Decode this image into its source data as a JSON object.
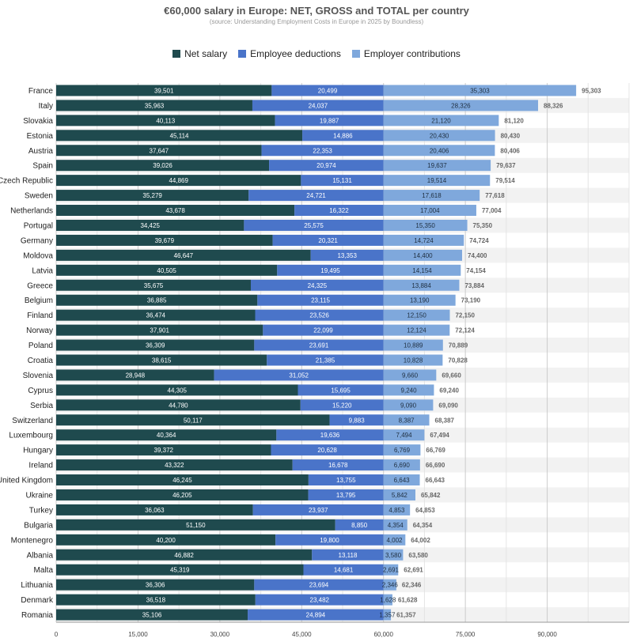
{
  "chart_data": {
    "type": "bar",
    "orientation": "horizontal",
    "stacked": true,
    "title": "€60,000 salary in Europe: NET, GROSS and TOTAL per country",
    "subtitle": "(source: Understanding Employment Costs in Europe in 2025 by Boundless)",
    "legend_position": "top",
    "grid": true,
    "xlim": [
      0,
      105000
    ],
    "x_ticks": [
      0,
      15000,
      30000,
      45000,
      60000,
      75000,
      90000
    ],
    "x_tick_labels": [
      "0",
      "15,000",
      "30,000",
      "45,000",
      "60,000",
      "75,000",
      "90,000"
    ],
    "categories": [
      "France",
      "Italy",
      "Slovakia",
      "Estonia",
      "Austria",
      "Spain",
      "Czech Republic",
      "Sweden",
      "Netherlands",
      "Portugal",
      "Germany",
      "Moldova",
      "Latvia",
      "Greece",
      "Belgium",
      "Finland",
      "Norway",
      "Poland",
      "Croatia",
      "Slovenia",
      "Cyprus",
      "Serbia",
      "Switzerland",
      "Luxembourg",
      "Hungary",
      "Ireland",
      "United Kingdom",
      "Ukraine",
      "Turkey",
      "Bulgaria",
      "Montenegro",
      "Albania",
      "Malta",
      "Lithuania",
      "Denmark",
      "Romania"
    ],
    "series": [
      {
        "name": "Net salary",
        "color": "#1f4a4e",
        "values": [
          39501,
          35963,
          40113,
          45114,
          37647,
          39026,
          44869,
          35279,
          43678,
          34425,
          39679,
          46647,
          40505,
          35675,
          36885,
          36474,
          37901,
          36309,
          38615,
          28948,
          44305,
          44780,
          50117,
          40364,
          39372,
          43322,
          46245,
          46205,
          36063,
          51150,
          40200,
          46882,
          45319,
          36306,
          36518,
          35106
        ],
        "labels": [
          "39,501",
          "35,963",
          "40,113",
          "45,114",
          "37,647",
          "39,026",
          "44,869",
          "35,279",
          "43,678",
          "34,425",
          "39,679",
          "46,647",
          "40,505",
          "35,675",
          "36,885",
          "36,474",
          "37,901",
          "36,309",
          "38,615",
          "28,948",
          "44,305",
          "44,780",
          "50,117",
          "40,364",
          "39,372",
          "43,322",
          "46,245",
          "46,205",
          "36,063",
          "51,150",
          "40,200",
          "46,882",
          "45,319",
          "36,306",
          "36,518",
          "35,106"
        ]
      },
      {
        "name": "Employee deductions",
        "color": "#4a74c9",
        "values": [
          20499,
          24037,
          19887,
          14886,
          22353,
          20974,
          15131,
          24721,
          16322,
          25575,
          20321,
          13353,
          19495,
          24325,
          23115,
          23526,
          22099,
          23691,
          21385,
          31052,
          15695,
          15220,
          9883,
          19636,
          20628,
          16678,
          13755,
          13795,
          23937,
          8850,
          19800,
          13118,
          14681,
          23694,
          23482,
          24894
        ],
        "labels": [
          "20,499",
          "24,037",
          "19,887",
          "14,886",
          "22,353",
          "20,974",
          "15,131",
          "24,721",
          "16,322",
          "25,575",
          "20,321",
          "13,353",
          "19,495",
          "24,325",
          "23,115",
          "23,526",
          "22,099",
          "23,691",
          "21,385",
          "31,052",
          "15,695",
          "15,220",
          "9,883",
          "19,636",
          "20,628",
          "16,678",
          "13,755",
          "13,795",
          "23,937",
          "8,850",
          "19,800",
          "13,118",
          "14,681",
          "23,694",
          "23,482",
          "24,894"
        ]
      },
      {
        "name": "Employer contributions",
        "color": "#7fa8dc",
        "values": [
          35303,
          28326,
          21120,
          20430,
          20406,
          19637,
          19514,
          17618,
          17004,
          15350,
          14724,
          14400,
          14154,
          13884,
          13190,
          12150,
          12124,
          10889,
          10828,
          9660,
          9240,
          9090,
          8387,
          7494,
          6769,
          6690,
          6643,
          5842,
          4853,
          4354,
          4002,
          3580,
          2691,
          2346,
          1628,
          1357
        ],
        "labels": [
          "35,303",
          "28,326",
          "21,120",
          "20,430",
          "20,406",
          "19,637",
          "19,514",
          "17,618",
          "17,004",
          "15,350",
          "14,724",
          "14,400",
          "14,154",
          "13,884",
          "13,190",
          "12,150",
          "12,124",
          "10,889",
          "10,828",
          "9,660",
          "9,240",
          "9,090",
          "8,387",
          "7,494",
          "6,769",
          "6,690",
          "6,643",
          "5,842",
          "4,853",
          "4,354",
          "4,002",
          "3,580",
          "2,691",
          "2,346",
          "1,628",
          "1,357"
        ]
      }
    ],
    "totals": [
      95303,
      88326,
      81120,
      80430,
      80406,
      79637,
      79514,
      77618,
      77004,
      75350,
      74724,
      74400,
      74154,
      73884,
      73190,
      72150,
      72124,
      70889,
      70828,
      69660,
      69240,
      69090,
      68387,
      67494,
      66769,
      66690,
      66643,
      65842,
      64853,
      64354,
      64002,
      63580,
      62691,
      62346,
      61628,
      61357
    ],
    "total_labels": [
      "95,303",
      "88,326",
      "81,120",
      "80,430",
      "80,406",
      "79,637",
      "79,514",
      "77,618",
      "77,004",
      "75,350",
      "74,724",
      "74,400",
      "74,154",
      "73,884",
      "73,190",
      "72,150",
      "72,124",
      "70,889",
      "70,828",
      "69,660",
      "69,240",
      "69,090",
      "68,387",
      "67,494",
      "66,769",
      "66,690",
      "66,643",
      "65,842",
      "64,853",
      "64,354",
      "64,002",
      "63,580",
      "62,691",
      "62,346",
      "61,628",
      "61,357"
    ]
  }
}
